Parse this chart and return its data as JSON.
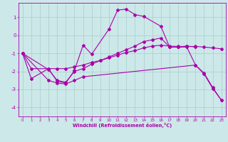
{
  "xlabel": "Windchill (Refroidissement éolien,°C)",
  "background_color": "#cce8e8",
  "grid_color": "#aacccc",
  "line_color": "#aa00aa",
  "ylim": [
    -4.5,
    1.8
  ],
  "xlim": [
    -0.5,
    23.5
  ],
  "yticks": [
    -4,
    -3,
    -2,
    -1,
    0,
    1
  ],
  "xticks": [
    0,
    1,
    2,
    3,
    4,
    5,
    6,
    7,
    8,
    9,
    10,
    11,
    12,
    13,
    14,
    15,
    16,
    17,
    18,
    19,
    20,
    21,
    22,
    23
  ],
  "line_a_x": [
    0,
    1,
    3,
    4,
    5,
    6,
    7,
    8,
    10,
    11,
    12,
    13,
    14,
    16,
    17,
    18,
    19,
    20
  ],
  "line_a_y": [
    -1.0,
    -2.4,
    -1.85,
    -2.55,
    -2.65,
    -1.95,
    -0.55,
    -1.05,
    0.35,
    1.4,
    1.45,
    1.15,
    1.05,
    0.5,
    -0.65,
    -0.65,
    -0.6,
    -0.65
  ],
  "line_b_x": [
    0,
    1,
    3,
    4,
    5,
    6,
    7,
    8,
    9,
    10,
    11,
    12,
    13,
    14,
    15,
    16,
    17,
    18,
    19,
    20,
    21,
    22,
    23
  ],
  "line_b_y": [
    -1.0,
    -1.85,
    -1.85,
    -1.85,
    -1.85,
    -1.75,
    -1.65,
    -1.5,
    -1.4,
    -1.25,
    -1.1,
    -0.95,
    -0.85,
    -0.7,
    -0.6,
    -0.55,
    -0.6,
    -0.62,
    -0.62,
    -0.62,
    -0.65,
    -0.7,
    -0.75
  ],
  "line_c_x": [
    0,
    3,
    4,
    5,
    6,
    7,
    8,
    9,
    10,
    11,
    12,
    13,
    14,
    15,
    16,
    17,
    18,
    19,
    20,
    21,
    22,
    23
  ],
  "line_c_y": [
    -1.0,
    -1.9,
    -2.5,
    -2.6,
    -2.0,
    -1.85,
    -1.6,
    -1.4,
    -1.2,
    -1.0,
    -0.8,
    -0.6,
    -0.35,
    -0.25,
    -0.15,
    -0.65,
    -0.65,
    -0.65,
    -1.65,
    -2.1,
    -2.9,
    -3.6
  ],
  "line_d_x": [
    0,
    3,
    4,
    5,
    6,
    7,
    20,
    21,
    22,
    23
  ],
  "line_d_y": [
    -1.0,
    -2.5,
    -2.65,
    -2.7,
    -2.5,
    -2.3,
    -1.65,
    -2.15,
    -2.95,
    -3.6
  ]
}
